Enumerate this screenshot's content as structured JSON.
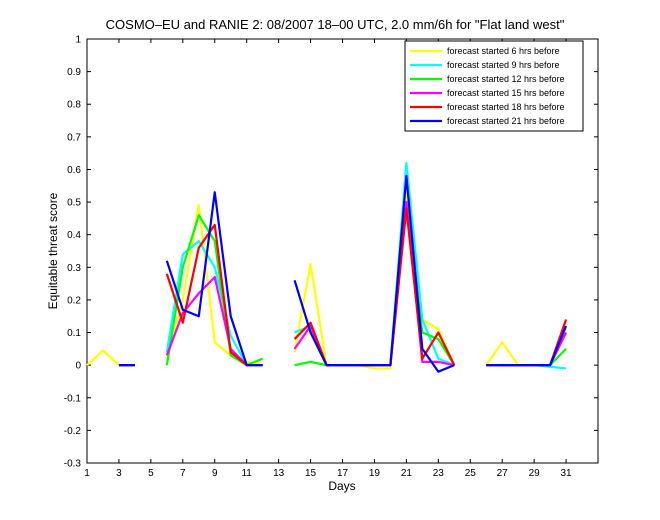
{
  "chart_data": {
    "type": "line",
    "title": "COSMO–EU and RANIE 2: 08/2007 18–00 UTC, 2.0 mm/6h for \"Flat land west\"",
    "xlabel": "Days",
    "ylabel": "Equitable threat score",
    "xlim": [
      1,
      33
    ],
    "ylim": [
      -0.3,
      1
    ],
    "xticks": [
      1,
      3,
      5,
      7,
      9,
      11,
      13,
      15,
      17,
      19,
      21,
      23,
      25,
      27,
      29,
      31
    ],
    "yticks": [
      -0.3,
      -0.2,
      -0.1,
      0,
      0.1,
      0.2,
      0.3,
      0.4,
      0.5,
      0.6,
      0.7,
      0.8,
      0.9,
      1
    ],
    "ytick_labels": [
      "-0.3",
      "-0.2",
      "-0.1",
      "0",
      "0.1",
      "0.2",
      "0.3",
      "0.4",
      "0.5",
      "0.6",
      "0.7",
      "0.8",
      "0.9",
      "1"
    ],
    "grid": false,
    "legend_position": "top-right",
    "series": [
      {
        "name": "forecast started 6 hrs before",
        "color": "#ffff00",
        "points": [
          [
            1,
            0
          ],
          [
            2,
            0.045
          ],
          [
            3,
            0
          ],
          [
            6,
            0.02
          ],
          [
            7,
            0.2
          ],
          [
            8,
            0.49
          ],
          [
            9,
            0.07
          ],
          [
            10,
            0.03
          ],
          [
            11,
            0.01
          ],
          [
            12,
            0
          ],
          [
            14,
            0.04
          ],
          [
            15,
            0.31
          ],
          [
            16,
            0
          ],
          [
            17,
            0
          ],
          [
            18,
            0
          ],
          [
            19,
            -0.01
          ],
          [
            20,
            -0.01
          ],
          [
            21,
            0.52
          ],
          [
            22,
            0.14
          ],
          [
            23,
            0.11
          ],
          [
            24,
            0
          ],
          [
            26,
            0
          ],
          [
            27,
            0.07
          ],
          [
            28,
            0
          ],
          [
            29,
            0
          ],
          [
            30,
            0
          ],
          [
            31,
            0.1
          ]
        ]
      },
      {
        "name": "forecast started 9 hrs before",
        "color": "#00ffff",
        "points": [
          [
            1,
            0
          ],
          [
            3,
            0
          ],
          [
            4,
            0
          ],
          [
            6,
            0.04
          ],
          [
            7,
            0.34
          ],
          [
            8,
            0.38
          ],
          [
            9,
            0.3
          ],
          [
            10,
            0.09
          ],
          [
            11,
            0
          ],
          [
            12,
            0
          ],
          [
            14,
            0.1
          ],
          [
            15,
            0.12
          ],
          [
            16,
            0
          ],
          [
            17,
            0
          ],
          [
            18,
            0
          ],
          [
            19,
            0
          ],
          [
            20,
            0
          ],
          [
            21,
            0.62
          ],
          [
            22,
            0.14
          ],
          [
            23,
            0.02
          ],
          [
            24,
            0
          ],
          [
            26,
            0
          ],
          [
            27,
            0
          ],
          [
            28,
            0
          ],
          [
            29,
            0
          ],
          [
            30,
            -0.005
          ],
          [
            31,
            -0.01
          ]
        ]
      },
      {
        "name": "forecast started 12 hrs before",
        "color": "#00ff00",
        "points": [
          [
            1,
            0
          ],
          [
            3,
            0
          ],
          [
            4,
            0
          ],
          [
            6,
            0
          ],
          [
            7,
            0.3
          ],
          [
            8,
            0.46
          ],
          [
            9,
            0.38
          ],
          [
            10,
            0.03
          ],
          [
            11,
            0
          ],
          [
            12,
            0.02
          ],
          [
            14,
            0
          ],
          [
            15,
            0.01
          ],
          [
            16,
            0
          ],
          [
            17,
            0
          ],
          [
            18,
            0
          ],
          [
            19,
            0
          ],
          [
            20,
            0
          ],
          [
            21,
            0.5
          ],
          [
            22,
            0.1
          ],
          [
            23,
            0.08
          ],
          [
            24,
            0
          ],
          [
            26,
            0
          ],
          [
            27,
            0
          ],
          [
            28,
            0
          ],
          [
            29,
            0
          ],
          [
            30,
            0
          ],
          [
            31,
            0.05
          ]
        ]
      },
      {
        "name": "forecast started 15 hrs before",
        "color": "#ff00ff",
        "points": [
          [
            1,
            0
          ],
          [
            3,
            0
          ],
          [
            4,
            0
          ],
          [
            6,
            0.03
          ],
          [
            7,
            0.16
          ],
          [
            8,
            0.22
          ],
          [
            9,
            0.27
          ],
          [
            10,
            0.05
          ],
          [
            11,
            0
          ],
          [
            12,
            0
          ],
          [
            14,
            0.05
          ],
          [
            15,
            0.12
          ],
          [
            16,
            0
          ],
          [
            17,
            0
          ],
          [
            18,
            0
          ],
          [
            19,
            0
          ],
          [
            20,
            0
          ],
          [
            21,
            0.5
          ],
          [
            22,
            0.01
          ],
          [
            23,
            0.01
          ],
          [
            24,
            0
          ],
          [
            26,
            0
          ],
          [
            27,
            0
          ],
          [
            28,
            0
          ],
          [
            29,
            0
          ],
          [
            30,
            0
          ],
          [
            31,
            0.1
          ]
        ]
      },
      {
        "name": "forecast started 18 hrs before",
        "color": "#ff0000",
        "points": [
          [
            1,
            0
          ],
          [
            3,
            0
          ],
          [
            4,
            0
          ],
          [
            6,
            0.28
          ],
          [
            7,
            0.13
          ],
          [
            8,
            0.36
          ],
          [
            9,
            0.43
          ],
          [
            10,
            0.04
          ],
          [
            11,
            0
          ],
          [
            12,
            0
          ],
          [
            14,
            0.08
          ],
          [
            15,
            0.13
          ],
          [
            16,
            0
          ],
          [
            17,
            0
          ],
          [
            18,
            0
          ],
          [
            19,
            0
          ],
          [
            20,
            0
          ],
          [
            21,
            0.48
          ],
          [
            22,
            0.02
          ],
          [
            23,
            0.1
          ],
          [
            24,
            0
          ],
          [
            26,
            0
          ],
          [
            27,
            0
          ],
          [
            28,
            0
          ],
          [
            29,
            0
          ],
          [
            30,
            0
          ],
          [
            31,
            0.14
          ]
        ]
      },
      {
        "name": "forecast started 21 hrs before",
        "color": "#0000ff",
        "points": [
          [
            1,
            0
          ],
          [
            3,
            0
          ],
          [
            4,
            0
          ],
          [
            6,
            0.32
          ],
          [
            7,
            0.17
          ],
          [
            8,
            0.15
          ],
          [
            9,
            0.53
          ],
          [
            10,
            0.15
          ],
          [
            11,
            0
          ],
          [
            12,
            0
          ],
          [
            14,
            0.26
          ],
          [
            15,
            0.1
          ],
          [
            16,
            0
          ],
          [
            17,
            0
          ],
          [
            18,
            0
          ],
          [
            19,
            0
          ],
          [
            20,
            0
          ],
          [
            21,
            0.58
          ],
          [
            22,
            0.05
          ],
          [
            23,
            -0.02
          ],
          [
            24,
            0
          ],
          [
            26,
            0
          ],
          [
            27,
            0
          ],
          [
            28,
            0
          ],
          [
            29,
            0
          ],
          [
            30,
            0
          ],
          [
            31,
            0.12
          ]
        ]
      }
    ]
  }
}
